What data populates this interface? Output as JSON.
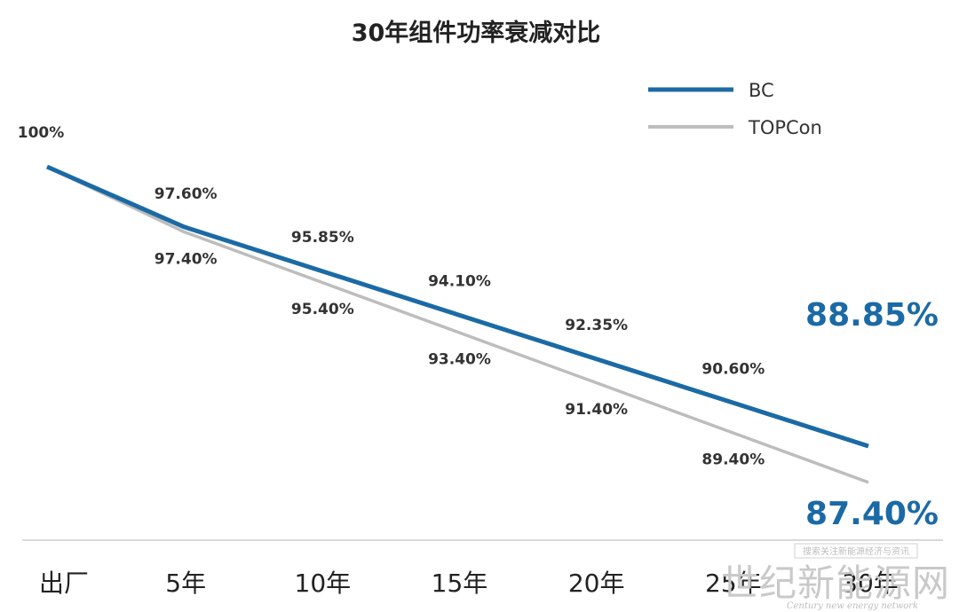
{
  "chart_data": {
    "type": "line",
    "title": "30年组件功率衰减对比",
    "categories": [
      "出厂",
      "5年",
      "10年",
      "15年",
      "20年",
      "25年",
      "30年"
    ],
    "start_label": "100%",
    "legend_position": "top-right",
    "grid": false,
    "ylim": [
      86,
      100
    ],
    "series": [
      {
        "name": "BC",
        "color": "#1b6aa5",
        "values": [
          100,
          97.6,
          95.85,
          94.1,
          92.35,
          90.6,
          88.85
        ],
        "labels": [
          "",
          "97.60%",
          "95.85%",
          "94.10%",
          "92.35%",
          "90.60%",
          "88.85%"
        ]
      },
      {
        "name": "TOPCon",
        "color": "#bdbdbd",
        "values": [
          100,
          97.4,
          95.4,
          93.4,
          91.4,
          89.4,
          87.4
        ],
        "labels": [
          "",
          "97.40%",
          "95.40%",
          "93.40%",
          "91.40%",
          "89.40%",
          "87.40%"
        ]
      }
    ],
    "end_label_color": "#1b6aa5"
  },
  "watermark": {
    "tagline": "搜索关注新能源经济与资讯",
    "brand": "世纪新能源网",
    "subtitle": "Century new energy network"
  }
}
